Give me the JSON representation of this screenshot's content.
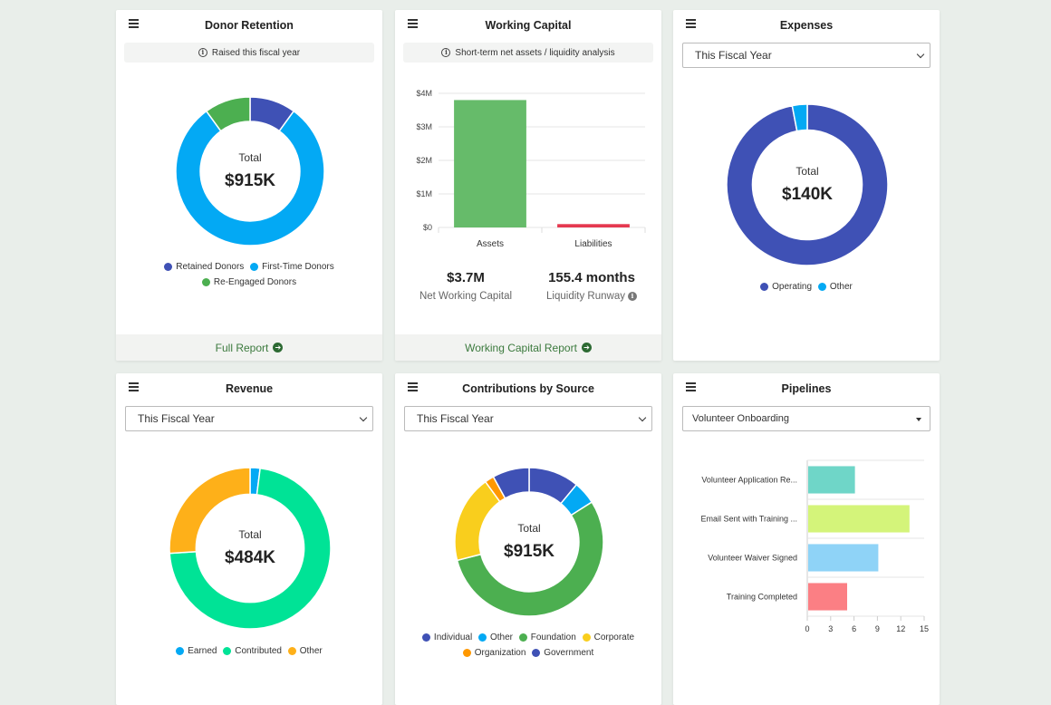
{
  "cards": {
    "donor_retention": {
      "title": "Donor Retention",
      "info": "Raised this fiscal year",
      "total_label": "Total",
      "total_value": "$915K",
      "legend": [
        "Retained Donors",
        "First-Time Donors",
        "Re-Engaged Donors"
      ],
      "footer": "Full Report"
    },
    "working_capital": {
      "title": "Working Capital",
      "info": "Short-term net assets / liquidity analysis",
      "stat1_value": "$3.7M",
      "stat1_label": "Net Working Capital",
      "stat2_value": "155.4 months",
      "stat2_label": "Liquidity Runway",
      "footer": "Working Capital Report"
    },
    "expenses": {
      "title": "Expenses",
      "select": "This Fiscal Year",
      "total_label": "Total",
      "total_value": "$140K",
      "legend": [
        "Operating",
        "Other"
      ]
    },
    "revenue": {
      "title": "Revenue",
      "select": "This Fiscal Year",
      "total_label": "Total",
      "total_value": "$484K",
      "legend": [
        "Earned",
        "Contributed",
        "Other"
      ]
    },
    "contributions": {
      "title": "Contributions by Source",
      "select": "This Fiscal Year",
      "total_label": "Total",
      "total_value": "$915K",
      "legend": [
        "Individual",
        "Other",
        "Foundation",
        "Corporate",
        "Organization",
        "Government"
      ]
    },
    "pipelines": {
      "title": "Pipelines",
      "select": "Volunteer Onboarding"
    }
  },
  "colors": {
    "indigo": "#3f51b5",
    "sky": "#03a9f4",
    "green": "#4caf50",
    "bar_green": "#66bb6a",
    "red": "#e53950",
    "mint": "#00e396",
    "orange": "#feb019",
    "yellow": "#f9ce1d",
    "amber": "#ff9800"
  },
  "chart_data": [
    {
      "id": "donor_retention",
      "type": "pie",
      "categories": [
        "Retained Donors",
        "First-Time Donors",
        "Re-Engaged Donors"
      ],
      "values": [
        10,
        80,
        10
      ],
      "colors": [
        "#3f51b5",
        "#03a9f4",
        "#4caf50"
      ]
    },
    {
      "id": "working_capital",
      "type": "bar",
      "categories": [
        "Assets",
        "Liabilities"
      ],
      "values": [
        3.8,
        0.1
      ],
      "ylim": [
        0,
        4
      ],
      "yticks": [
        "$0",
        "$1M",
        "$2M",
        "$3M",
        "$4M"
      ],
      "colors": [
        "#66bb6a",
        "#e53950"
      ]
    },
    {
      "id": "expenses",
      "type": "pie",
      "categories": [
        "Operating",
        "Other"
      ],
      "values": [
        97,
        3
      ],
      "colors": [
        "#3f51b5",
        "#03a9f4"
      ]
    },
    {
      "id": "revenue",
      "type": "pie",
      "categories": [
        "Earned",
        "Contributed",
        "Other"
      ],
      "values": [
        2,
        72,
        26
      ],
      "colors": [
        "#03a9f4",
        "#00e396",
        "#feb019"
      ]
    },
    {
      "id": "contributions",
      "type": "pie",
      "categories": [
        "Individual",
        "Other",
        "Foundation",
        "Corporate",
        "Organization",
        "Government"
      ],
      "values": [
        11,
        5,
        55,
        19,
        2,
        8
      ],
      "colors": [
        "#3f51b5",
        "#03a9f4",
        "#4caf50",
        "#f9ce1d",
        "#ff9800",
        "#3f51b5"
      ]
    },
    {
      "id": "pipelines",
      "type": "bar",
      "orientation": "horizontal",
      "categories": [
        "Volunteer Application Re...",
        "Email Sent with Training ...",
        "Volunteer Waiver Signed",
        "Training Completed"
      ],
      "values": [
        6,
        13,
        9,
        5
      ],
      "xlim": [
        0,
        15
      ],
      "xticks": [
        "0",
        "3",
        "6",
        "9",
        "12",
        "15"
      ],
      "colors": [
        "#6fd6c8",
        "#d4f47a",
        "#8fd3f7",
        "#fb7f84"
      ]
    }
  ]
}
